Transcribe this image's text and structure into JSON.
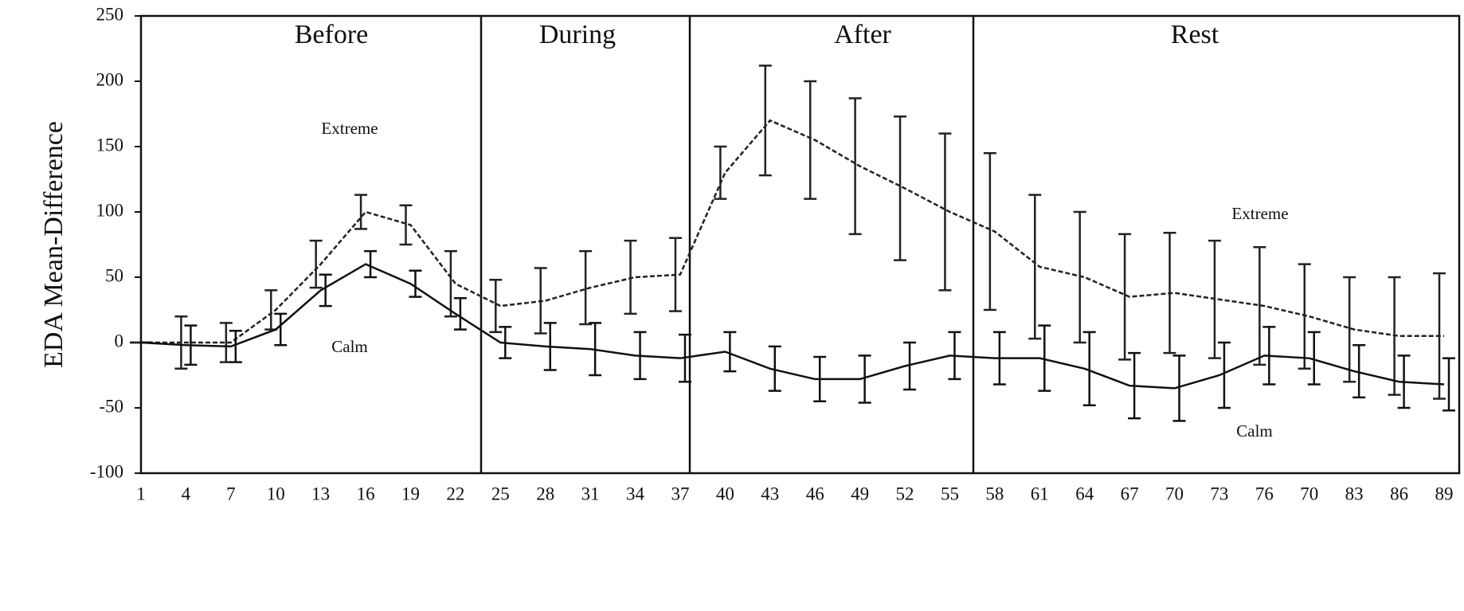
{
  "chart_data": {
    "type": "line",
    "y_label": "EDA Mean-Difference",
    "categories": [
      "1",
      "4",
      "7",
      "10",
      "13",
      "16",
      "19",
      "22",
      "25",
      "28",
      "31",
      "34",
      "37",
      "40",
      "43",
      "46",
      "49",
      "52",
      "55",
      "58",
      "61",
      "64",
      "67",
      "70",
      "73",
      "76",
      "70",
      "83",
      "86",
      "89"
    ],
    "phases": [
      "Before",
      "During",
      "After",
      "Rest"
    ],
    "ylim": [
      -100,
      250
    ],
    "yticks": [
      -100,
      -50,
      0,
      50,
      100,
      150,
      200,
      250
    ],
    "series": [
      {
        "name": "Extreme",
        "color": "#222222",
        "dashed": true,
        "values": [
          0,
          0,
          0,
          25,
          60,
          100,
          90,
          45,
          28,
          32,
          42,
          50,
          52,
          130,
          170,
          155,
          135,
          118,
          100,
          85,
          58,
          50,
          35,
          38,
          33,
          28,
          20,
          10,
          5,
          5
        ],
        "errors": [
          0,
          20,
          15,
          15,
          18,
          13,
          15,
          25,
          20,
          25,
          28,
          28,
          28,
          20,
          42,
          45,
          52,
          55,
          60,
          60,
          55,
          50,
          48,
          46,
          45,
          45,
          40,
          40,
          45,
          48
        ]
      },
      {
        "name": "Calm",
        "color": "#111111",
        "dashed": false,
        "values": [
          0,
          -2,
          -3,
          10,
          40,
          60,
          45,
          22,
          0,
          -3,
          -5,
          -10,
          -12,
          -7,
          -20,
          -28,
          -28,
          -18,
          -10,
          -12,
          -12,
          -20,
          -33,
          -35,
          -25,
          -10,
          -12,
          -22,
          -30,
          -32
        ],
        "errors": [
          0,
          15,
          12,
          12,
          12,
          10,
          10,
          12,
          12,
          18,
          20,
          18,
          18,
          15,
          17,
          17,
          18,
          18,
          18,
          20,
          25,
          28,
          25,
          25,
          25,
          22,
          20,
          20,
          20,
          20
        ]
      }
    ]
  }
}
